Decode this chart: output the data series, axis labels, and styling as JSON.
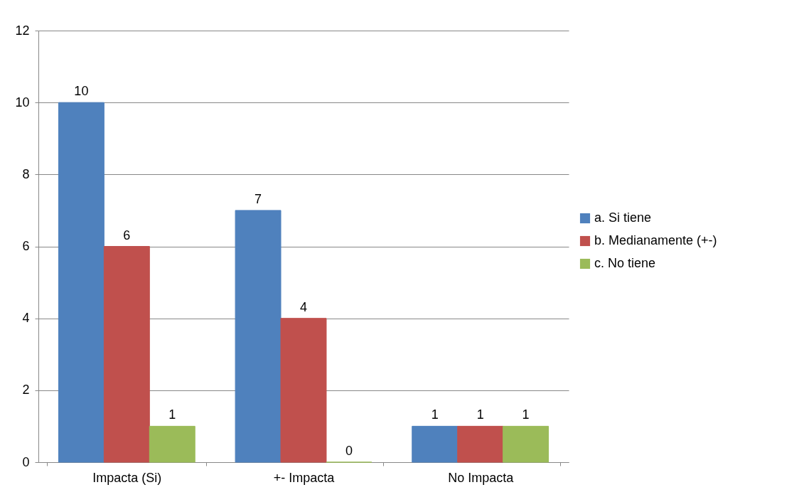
{
  "chart_data": {
    "type": "bar",
    "categories": [
      "Impacta (Si)",
      "+- Impacta",
      "No Impacta"
    ],
    "series": [
      {
        "name": "a. Si tiene",
        "color": "#4f81bd",
        "values": [
          10,
          7,
          1
        ]
      },
      {
        "name": "b. Medianamente (+-)",
        "color": "#c0504d",
        "values": [
          6,
          4,
          1
        ]
      },
      {
        "name": "c. No tiene",
        "color": "#9bbb59",
        "values": [
          1,
          0,
          1
        ]
      }
    ],
    "ylim": [
      0,
      12
    ],
    "yticks": [
      0,
      2,
      4,
      6,
      8,
      10,
      12
    ],
    "grid": "y",
    "legend": "right",
    "data_labels": true
  }
}
